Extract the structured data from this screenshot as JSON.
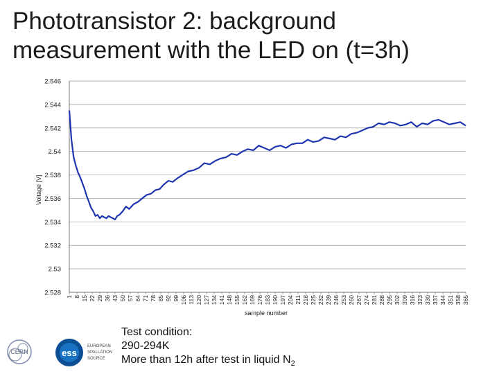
{
  "title": "Phototransistor 2: background measurement with the LED on (t=3h)",
  "chart_data": {
    "type": "line",
    "title": "",
    "xlabel": "sample number",
    "ylabel": "Voltage [V]",
    "ylim": [
      2.528,
      2.546
    ],
    "yticks": [
      "2.546",
      "2.544",
      "2.542",
      "2.54",
      "2.538",
      "2.536",
      "2.534",
      "2.532",
      "2.53",
      "2.528"
    ],
    "xlim": [
      1,
      365
    ],
    "xticks": [
      "1",
      "8",
      "15",
      "22",
      "29",
      "36",
      "43",
      "50",
      "57",
      "64",
      "71",
      "78",
      "85",
      "92",
      "99",
      "106",
      "113",
      "120",
      "127",
      "134",
      "141",
      "148",
      "155",
      "162",
      "169",
      "176",
      "183",
      "190",
      "197",
      "204",
      "211",
      "218",
      "225",
      "232",
      "239",
      "246",
      "253",
      "260",
      "267",
      "274",
      "281",
      "288",
      "295",
      "302",
      "309",
      "316",
      "323",
      "330",
      "337",
      "344",
      "351",
      "358",
      "365"
    ],
    "grid": "horizontal",
    "series": [
      {
        "name": "",
        "color": "#1f35b0",
        "x": [
          1,
          3,
          5,
          7,
          9,
          11,
          13,
          15,
          17,
          19,
          21,
          23,
          25,
          27,
          29,
          31,
          33,
          35,
          37,
          39,
          41,
          43,
          45,
          47,
          50,
          53,
          56,
          60,
          64,
          68,
          72,
          76,
          80,
          84,
          88,
          92,
          96,
          100,
          105,
          110,
          115,
          120,
          125,
          130,
          135,
          140,
          145,
          150,
          155,
          160,
          165,
          170,
          175,
          180,
          185,
          190,
          195,
          200,
          205,
          210,
          215,
          220,
          225,
          230,
          235,
          240,
          245,
          250,
          255,
          260,
          265,
          270,
          275,
          280,
          285,
          290,
          295,
          300,
          305,
          310,
          315,
          320,
          325,
          330,
          335,
          340,
          345,
          350,
          355,
          360,
          365
        ],
        "y": [
          2.5435,
          2.541,
          2.5395,
          2.5388,
          2.5382,
          2.5378,
          2.5373,
          2.5368,
          2.5362,
          2.5357,
          2.5352,
          2.5349,
          2.5345,
          2.5346,
          2.5343,
          2.5345,
          2.5344,
          2.5343,
          2.5345,
          2.5344,
          2.5343,
          2.5342,
          2.5345,
          2.5346,
          2.5349,
          2.5353,
          2.5351,
          2.5355,
          2.5357,
          2.536,
          2.5363,
          2.5364,
          2.5367,
          2.5368,
          2.5372,
          2.5375,
          2.5374,
          2.5377,
          2.538,
          2.5383,
          2.5384,
          2.5386,
          2.539,
          2.5389,
          2.5392,
          2.5394,
          2.5395,
          2.5398,
          2.5397,
          2.54,
          2.5402,
          2.5401,
          2.5405,
          2.5403,
          2.5401,
          2.5404,
          2.5405,
          2.5403,
          2.5406,
          2.5407,
          2.5407,
          2.541,
          2.5408,
          2.5409,
          2.5412,
          2.5411,
          2.541,
          2.5413,
          2.5412,
          2.5415,
          2.5416,
          2.5418,
          2.542,
          2.5421,
          2.5424,
          2.5423,
          2.5425,
          2.5424,
          2.5422,
          2.5423,
          2.5425,
          2.5421,
          2.5424,
          2.5423,
          2.5426,
          2.5427,
          2.5425,
          2.5423,
          2.5424,
          2.5425,
          2.5422
        ]
      }
    ]
  },
  "note": {
    "line1": "Test condition:",
    "line2": "290-294K",
    "line3": "More than 12h after test in liquid N",
    "line3_sub": "2"
  },
  "logos": {
    "cern": "CERN",
    "ess": "ess",
    "ess_text": [
      "EUROPEAN",
      "SPALLATION",
      "SOURCE"
    ]
  }
}
